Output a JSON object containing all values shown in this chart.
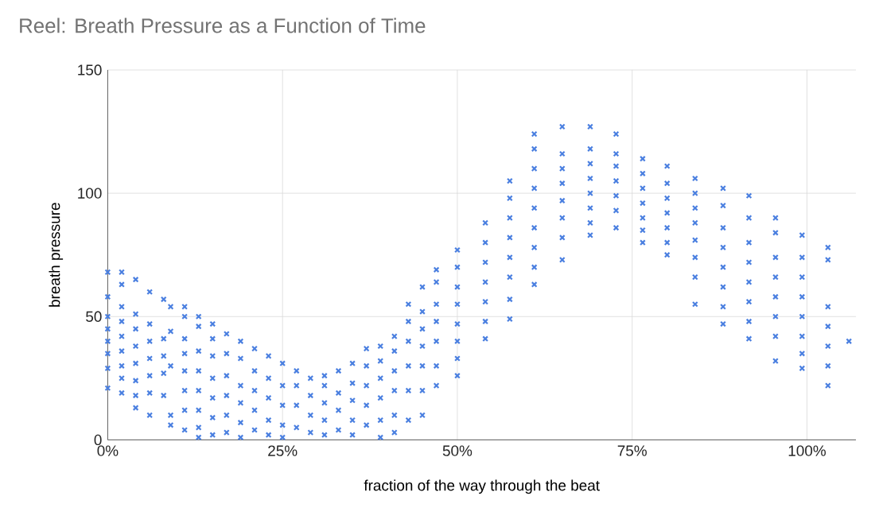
{
  "chart_data": {
    "type": "scatter",
    "title": "Reel: Breath Pressure as a Function of Time",
    "xlabel": "fraction of the way through the beat",
    "ylabel": "breath pressure",
    "xlim": [
      0,
      107
    ],
    "ylim": [
      0,
      150
    ],
    "xticks": [
      {
        "value": 0,
        "label": "0%"
      },
      {
        "value": 25,
        "label": "25%"
      },
      {
        "value": 50,
        "label": "50%"
      },
      {
        "value": 75,
        "label": "75%"
      },
      {
        "value": 100,
        "label": "100%"
      }
    ],
    "yticks": [
      0,
      50,
      100,
      150
    ],
    "grid": true,
    "marker": "cross",
    "series": [
      {
        "color": "#4a7fe0",
        "x": [
          0,
          0,
          0,
          0,
          0,
          0,
          0,
          0,
          2,
          2,
          2,
          2,
          2,
          2,
          2,
          2,
          2,
          4,
          4,
          4,
          4,
          4,
          4,
          4,
          4,
          6,
          6,
          6,
          6,
          6,
          6,
          6,
          8,
          8,
          8,
          8,
          8,
          9,
          9,
          9,
          9,
          9,
          11,
          11,
          11,
          11,
          11,
          11,
          11,
          11,
          13,
          13,
          13,
          13,
          13,
          13,
          13,
          13,
          15,
          15,
          15,
          15,
          15,
          15,
          15,
          17,
          17,
          17,
          17,
          17,
          17,
          19,
          19,
          19,
          19,
          19,
          19,
          21,
          21,
          21,
          21,
          21,
          23,
          23,
          23,
          23,
          23,
          25,
          25,
          25,
          25,
          25,
          27,
          27,
          27,
          27,
          29,
          29,
          29,
          29,
          31,
          31,
          31,
          31,
          31,
          33,
          33,
          33,
          33,
          35,
          35,
          35,
          35,
          35,
          37,
          37,
          37,
          37,
          37,
          39,
          39,
          39,
          39,
          39,
          39,
          41,
          41,
          41,
          41,
          41,
          41,
          43,
          43,
          43,
          43,
          43,
          43,
          45,
          45,
          45,
          45,
          45,
          45,
          45,
          47,
          47,
          47,
          47,
          47,
          47,
          47,
          50,
          50,
          50,
          50,
          50,
          50,
          50,
          50,
          54,
          54,
          54,
          54,
          54,
          54,
          54,
          57.5,
          57.5,
          57.5,
          57.5,
          57.5,
          57.5,
          57.5,
          57.5,
          61,
          61,
          61,
          61,
          61,
          61,
          61,
          61,
          61,
          65,
          65,
          65,
          65,
          65,
          65,
          65,
          65,
          69,
          69,
          69,
          69,
          69,
          69,
          69,
          69,
          72.7,
          72.7,
          72.7,
          72.7,
          72.7,
          72.7,
          72.7,
          76.5,
          76.5,
          76.5,
          76.5,
          76.5,
          76.5,
          76.5,
          80,
          80,
          80,
          80,
          80,
          80,
          80,
          84,
          84,
          84,
          84,
          84,
          84,
          84,
          84,
          88,
          88,
          88,
          88,
          88,
          88,
          88,
          88,
          91.7,
          91.7,
          91.7,
          91.7,
          91.7,
          91.7,
          91.7,
          91.7,
          95.5,
          95.5,
          95.5,
          95.5,
          95.5,
          95.5,
          95.5,
          95.5,
          99.3,
          99.3,
          99.3,
          99.3,
          99.3,
          99.3,
          99.3,
          99.3,
          103,
          103,
          103,
          103,
          103,
          103,
          103,
          106
        ],
        "values": [
          68,
          58,
          50,
          45,
          40,
          35,
          29,
          21,
          68,
          63,
          54,
          48,
          42,
          36,
          30,
          25,
          19,
          65,
          51,
          45,
          38,
          31,
          24,
          18,
          13,
          60,
          47,
          40,
          33,
          26,
          19,
          10,
          57,
          41,
          34,
          27,
          18,
          54,
          44,
          30,
          10,
          6,
          54,
          50,
          41,
          35,
          28,
          20,
          12,
          4,
          50,
          46,
          36,
          28,
          20,
          12,
          5,
          1,
          47,
          41,
          34,
          25,
          17,
          9,
          2,
          43,
          35,
          26,
          18,
          10,
          3,
          40,
          33,
          22,
          15,
          7,
          1,
          37,
          28,
          20,
          12,
          4,
          34,
          25,
          17,
          8,
          2,
          31,
          22,
          14,
          6,
          1,
          28,
          22,
          14,
          5,
          25,
          18,
          10,
          3,
          26,
          22,
          15,
          8,
          2,
          28,
          19,
          12,
          4,
          31,
          23,
          16,
          8,
          2,
          37,
          30,
          22,
          14,
          6,
          38,
          32,
          25,
          17,
          8,
          1,
          42,
          36,
          28,
          20,
          10,
          3,
          55,
          48,
          40,
          30,
          20,
          8,
          62,
          52,
          45,
          38,
          30,
          20,
          10,
          69,
          64,
          55,
          48,
          40,
          30,
          22,
          77,
          70,
          62,
          55,
          47,
          40,
          33,
          26,
          88,
          80,
          72,
          64,
          56,
          48,
          41,
          105,
          98,
          90,
          82,
          74,
          66,
          57,
          49,
          124,
          118,
          110,
          102,
          94,
          86,
          78,
          70,
          63,
          127,
          116,
          110,
          104,
          97,
          90,
          82,
          73,
          127,
          118,
          112,
          106,
          100,
          94,
          88,
          83,
          124,
          116,
          111,
          105,
          99,
          93,
          86,
          114,
          108,
          102,
          96,
          90,
          85,
          80,
          111,
          104,
          98,
          92,
          86,
          80,
          75,
          106,
          100,
          94,
          88,
          81,
          74,
          66,
          55,
          102,
          95,
          86,
          78,
          70,
          62,
          54,
          47,
          99,
          90,
          80,
          72,
          64,
          56,
          48,
          41,
          90,
          84,
          74,
          66,
          58,
          50,
          42,
          32,
          83,
          74,
          66,
          58,
          50,
          42,
          35,
          29,
          78,
          73,
          54,
          46,
          38,
          30,
          22,
          40
        ]
      }
    ]
  }
}
